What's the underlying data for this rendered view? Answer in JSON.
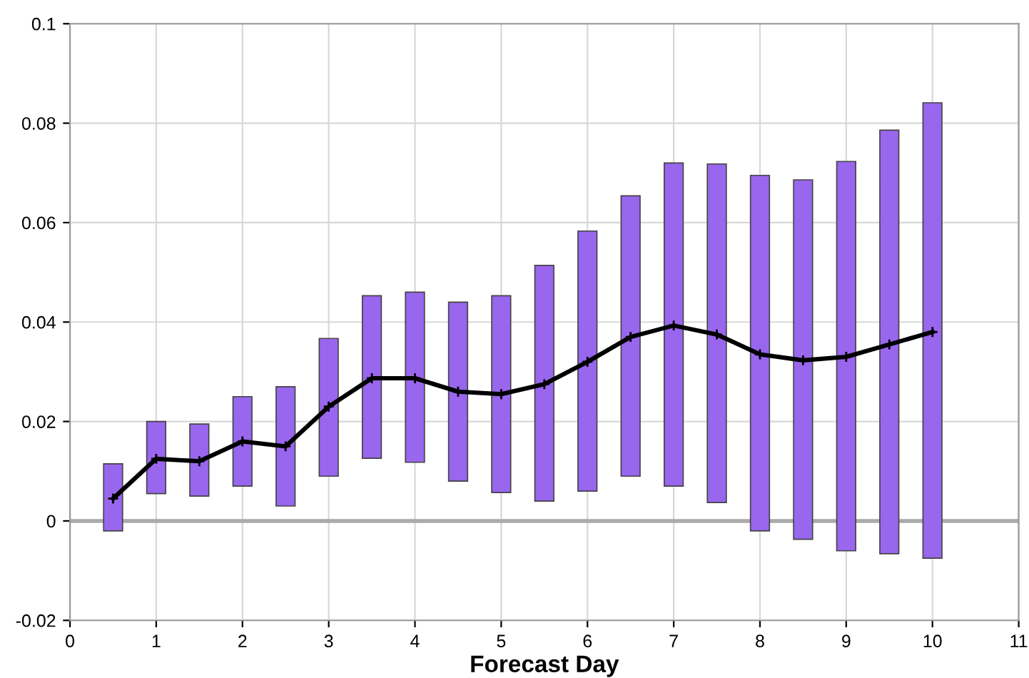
{
  "chart_data": {
    "type": "bar",
    "xlabel": "Forecast Day",
    "x": [
      0.5,
      1,
      1.5,
      2,
      2.5,
      3,
      3.5,
      4,
      4.5,
      5,
      5.5,
      6,
      6.5,
      7,
      7.5,
      8,
      8.5,
      9,
      9.5,
      10
    ],
    "series": [
      {
        "color": "#9966ee",
        "base": [
          -0.002,
          0.0055,
          0.005,
          0.007,
          0.003,
          0.009,
          0.0126,
          0.0118,
          0.008,
          0.0057,
          0.004,
          0.006,
          0.009,
          0.007,
          0.0037,
          -0.002,
          -0.0037,
          -0.006,
          -0.0066,
          -0.0075
        ],
        "values": [
          0.0135,
          0.0145,
          0.0145,
          0.018,
          0.024,
          0.0277,
          0.0327,
          0.0342,
          0.036,
          0.0396,
          0.0474,
          0.0523,
          0.0564,
          0.065,
          0.0681,
          0.0715,
          0.0723,
          0.0783,
          0.0852,
          0.0916
        ]
      },
      {
        "type": "line",
        "color": "#000000",
        "marker": "cross",
        "values": [
          0.0045,
          0.0125,
          0.012,
          0.016,
          0.015,
          0.023,
          0.0287,
          0.0287,
          0.026,
          0.0255,
          0.0275,
          0.032,
          0.037,
          0.0393,
          0.0375,
          0.0335,
          0.0323,
          0.033,
          0.0355,
          0.038
        ]
      }
    ],
    "xlim": [
      0,
      11
    ],
    "xticks": [
      0,
      1,
      2,
      3,
      4,
      5,
      6,
      7,
      8,
      9,
      10,
      11
    ],
    "ylim": [
      -0.02,
      0.1
    ],
    "yticks": [
      -0.02,
      0,
      0.02,
      0.04,
      0.06,
      0.08,
      0.1
    ],
    "ref_lines": [
      {
        "axis": "y",
        "value": 0,
        "color": "#aaaaaa"
      }
    ],
    "grid": true
  }
}
